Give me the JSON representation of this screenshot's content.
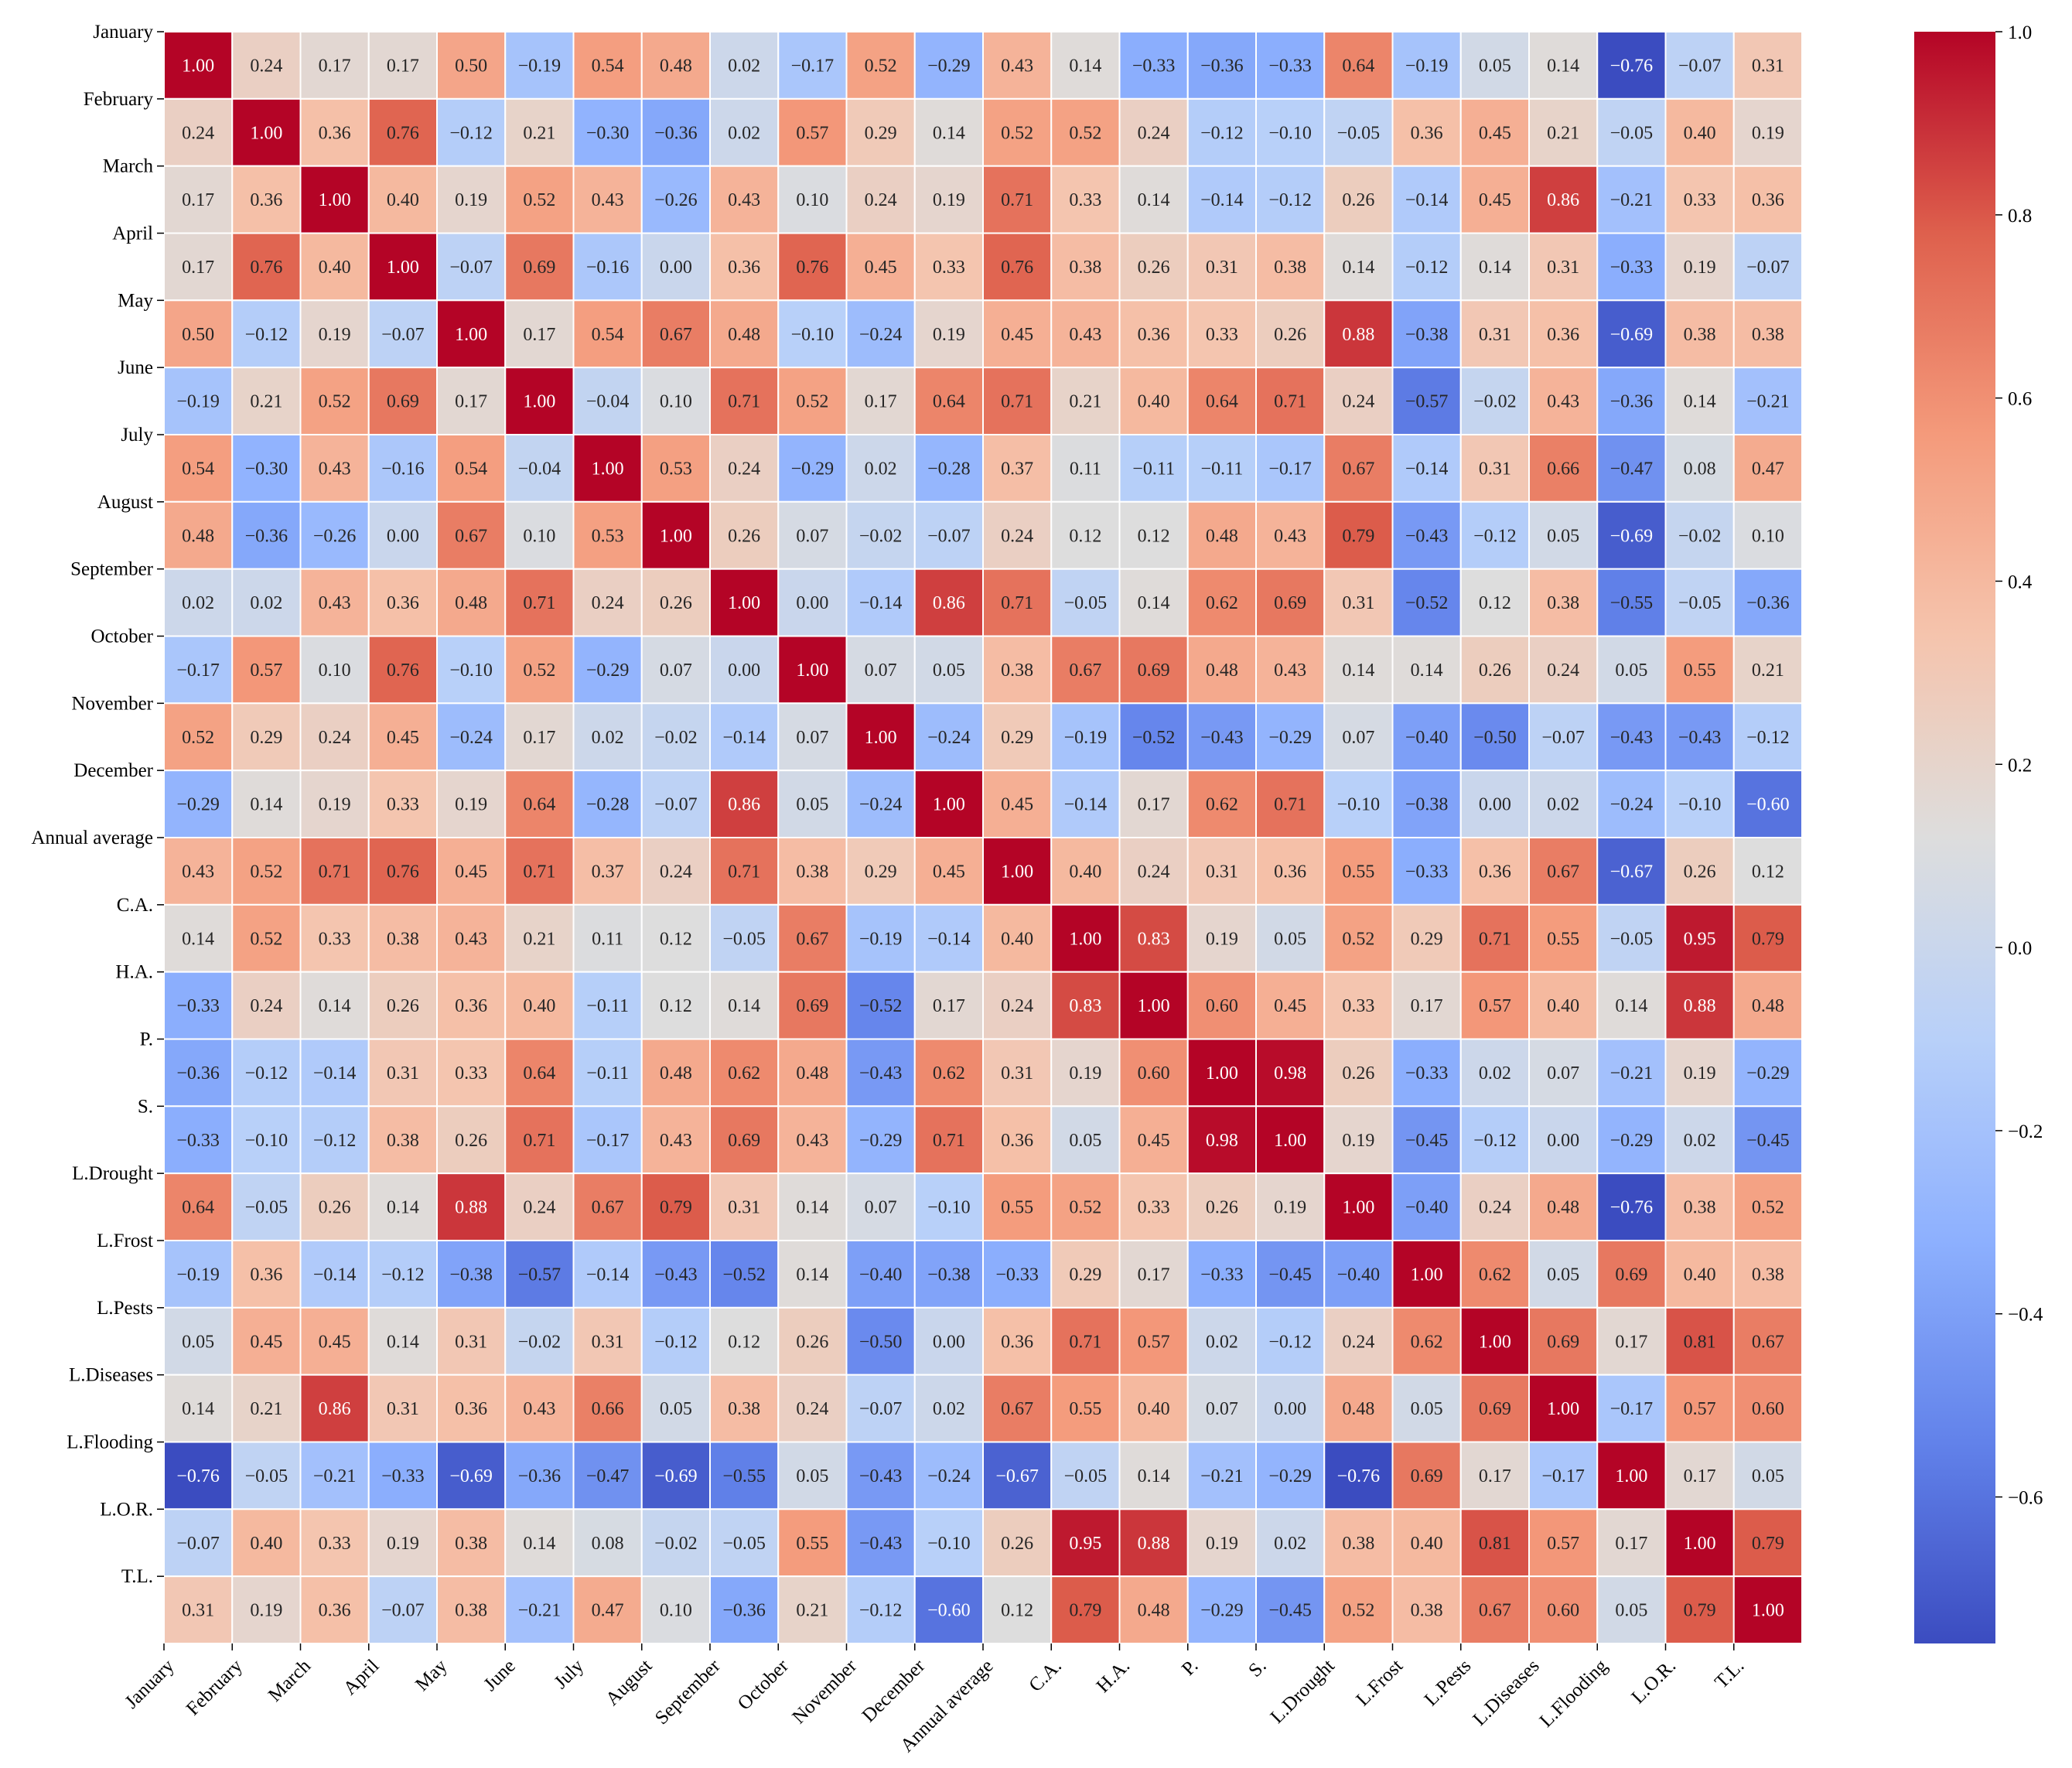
{
  "chart_data": {
    "type": "heatmap",
    "title": "",
    "xlabel": "",
    "ylabel": "",
    "colormap": "coolwarm",
    "value_range": [
      -0.76,
      1.0
    ],
    "labels": [
      "January",
      "February",
      "March",
      "April",
      "May",
      "June",
      "July",
      "August",
      "September",
      "October",
      "November",
      "December",
      "Annual average",
      "C.A.",
      "H.A.",
      "P.",
      "S.",
      "L.Drought",
      "L.Frost",
      "L.Pests",
      "L.Diseases",
      "L.Flooding",
      "L.O.R.",
      "T.L."
    ],
    "cell_labels": [
      [
        "1.00",
        "0.24",
        "0.17",
        "0.17",
        "0.50",
        "−0.19",
        "0.54",
        "0.48",
        "0.02",
        "−0.17",
        "0.52",
        "−0.29",
        "0.43",
        "0.14",
        "−0.33",
        "−0.36",
        "−0.33",
        "0.64",
        "−0.19",
        "0.05",
        "0.14",
        "−0.76",
        "−0.07",
        "0.31"
      ],
      [
        "0.24",
        "1.00",
        "0.36",
        "0.76",
        "−0.12",
        "0.21",
        "−0.30",
        "−0.36",
        "0.02",
        "0.57",
        "0.29",
        "0.14",
        "0.52",
        "0.52",
        "0.24",
        "−0.12",
        "−0.10",
        "−0.05",
        "0.36",
        "0.45",
        "0.21",
        "−0.05",
        "0.40",
        "0.19"
      ],
      [
        "0.17",
        "0.36",
        "1.00",
        "0.40",
        "0.19",
        "0.52",
        "0.43",
        "−0.26",
        "0.43",
        "0.10",
        "0.24",
        "0.19",
        "0.71",
        "0.33",
        "0.14",
        "−0.14",
        "−0.12",
        "0.26",
        "−0.14",
        "0.45",
        "0.86",
        "−0.21",
        "0.33",
        "0.36"
      ],
      [
        "0.17",
        "0.76",
        "0.40",
        "1.00",
        "−0.07",
        "0.69",
        "−0.16",
        "0.00",
        "0.36",
        "0.76",
        "0.45",
        "0.33",
        "0.76",
        "0.38",
        "0.26",
        "0.31",
        "0.38",
        "0.14",
        "−0.12",
        "0.14",
        "0.31",
        "−0.33",
        "0.19",
        "−0.07"
      ],
      [
        "0.50",
        "−0.12",
        "0.19",
        "−0.07",
        "1.00",
        "0.17",
        "0.54",
        "0.67",
        "0.48",
        "−0.10",
        "−0.24",
        "0.19",
        "0.45",
        "0.43",
        "0.36",
        "0.33",
        "0.26",
        "0.88",
        "−0.38",
        "0.31",
        "0.36",
        "−0.69",
        "0.38",
        "0.38"
      ],
      [
        "−0.19",
        "0.21",
        "0.52",
        "0.69",
        "0.17",
        "1.00",
        "−0.04",
        "0.10",
        "0.71",
        "0.52",
        "0.17",
        "0.64",
        "0.71",
        "0.21",
        "0.40",
        "0.64",
        "0.71",
        "0.24",
        "−0.57",
        "−0.02",
        "0.43",
        "−0.36",
        "0.14",
        "−0.21"
      ],
      [
        "0.54",
        "−0.30",
        "0.43",
        "−0.16",
        "0.54",
        "−0.04",
        "1.00",
        "0.53",
        "0.24",
        "−0.29",
        "0.02",
        "−0.28",
        "0.37",
        "0.11",
        "−0.11",
        "−0.11",
        "−0.17",
        "0.67",
        "−0.14",
        "0.31",
        "0.66",
        "−0.47",
        "0.08",
        "0.47"
      ],
      [
        "0.48",
        "−0.36",
        "−0.26",
        "0.00",
        "0.67",
        "0.10",
        "0.53",
        "1.00",
        "0.26",
        "0.07",
        "−0.02",
        "−0.07",
        "0.24",
        "0.12",
        "0.12",
        "0.48",
        "0.43",
        "0.79",
        "−0.43",
        "−0.12",
        "0.05",
        "−0.69",
        "−0.02",
        "0.10"
      ],
      [
        "0.02",
        "0.02",
        "0.43",
        "0.36",
        "0.48",
        "0.71",
        "0.24",
        "0.26",
        "1.00",
        "0.00",
        "−0.14",
        "0.86",
        "0.71",
        "−0.05",
        "0.14",
        "0.62",
        "0.69",
        "0.31",
        "−0.52",
        "0.12",
        "0.38",
        "−0.55",
        "−0.05",
        "−0.36"
      ],
      [
        "−0.17",
        "0.57",
        "0.10",
        "0.76",
        "−0.10",
        "0.52",
        "−0.29",
        "0.07",
        "0.00",
        "1.00",
        "0.07",
        "0.05",
        "0.38",
        "0.67",
        "0.69",
        "0.48",
        "0.43",
        "0.14",
        "0.14",
        "0.26",
        "0.24",
        "0.05",
        "0.55",
        "0.21"
      ],
      [
        "0.52",
        "0.29",
        "0.24",
        "0.45",
        "−0.24",
        "0.17",
        "0.02",
        "−0.02",
        "−0.14",
        "0.07",
        "1.00",
        "−0.24",
        "0.29",
        "−0.19",
        "−0.52",
        "−0.43",
        "−0.29",
        "0.07",
        "−0.40",
        "−0.50",
        "−0.07",
        "−0.43",
        "−0.43",
        "−0.12"
      ],
      [
        "−0.29",
        "0.14",
        "0.19",
        "0.33",
        "0.19",
        "0.64",
        "−0.28",
        "−0.07",
        "0.86",
        "0.05",
        "−0.24",
        "1.00",
        "0.45",
        "−0.14",
        "0.17",
        "0.62",
        "0.71",
        "−0.10",
        "−0.38",
        "0.00",
        "0.02",
        "−0.24",
        "−0.10",
        "−0.60"
      ],
      [
        "0.43",
        "0.52",
        "0.71",
        "0.76",
        "0.45",
        "0.71",
        "0.37",
        "0.24",
        "0.71",
        "0.38",
        "0.29",
        "0.45",
        "1.00",
        "0.40",
        "0.24",
        "0.31",
        "0.36",
        "0.55",
        "−0.33",
        "0.36",
        "0.67",
        "−0.67",
        "0.26",
        "0.12"
      ],
      [
        "0.14",
        "0.52",
        "0.33",
        "0.38",
        "0.43",
        "0.21",
        "0.11",
        "0.12",
        "−0.05",
        "0.67",
        "−0.19",
        "−0.14",
        "0.40",
        "1.00",
        "0.83",
        "0.19",
        "0.05",
        "0.52",
        "0.29",
        "0.71",
        "0.55",
        "−0.05",
        "0.95",
        "0.79"
      ],
      [
        "−0.33",
        "0.24",
        "0.14",
        "0.26",
        "0.36",
        "0.40",
        "−0.11",
        "0.12",
        "0.14",
        "0.69",
        "−0.52",
        "0.17",
        "0.24",
        "0.83",
        "1.00",
        "0.60",
        "0.45",
        "0.33",
        "0.17",
        "0.57",
        "0.40",
        "0.14",
        "0.88",
        "0.48"
      ],
      [
        "−0.36",
        "−0.12",
        "−0.14",
        "0.31",
        "0.33",
        "0.64",
        "−0.11",
        "0.48",
        "0.62",
        "0.48",
        "−0.43",
        "0.62",
        "0.31",
        "0.19",
        "0.60",
        "1.00",
        "0.98",
        "0.26",
        "−0.33",
        "0.02",
        "0.07",
        "−0.21",
        "0.19",
        "−0.29"
      ],
      [
        "−0.33",
        "−0.10",
        "−0.12",
        "0.38",
        "0.26",
        "0.71",
        "−0.17",
        "0.43",
        "0.69",
        "0.43",
        "−0.29",
        "0.71",
        "0.36",
        "0.05",
        "0.45",
        "0.98",
        "1.00",
        "0.19",
        "−0.45",
        "−0.12",
        "0.00",
        "−0.29",
        "0.02",
        "−0.45"
      ],
      [
        "0.64",
        "−0.05",
        "0.26",
        "0.14",
        "0.88",
        "0.24",
        "0.67",
        "0.79",
        "0.31",
        "0.14",
        "0.07",
        "−0.10",
        "0.55",
        "0.52",
        "0.33",
        "0.26",
        "0.19",
        "1.00",
        "−0.40",
        "0.24",
        "0.48",
        "−0.76",
        "0.38",
        "0.52"
      ],
      [
        "−0.19",
        "0.36",
        "−0.14",
        "−0.12",
        "−0.38",
        "−0.57",
        "−0.14",
        "−0.43",
        "−0.52",
        "0.14",
        "−0.40",
        "−0.38",
        "−0.33",
        "0.29",
        "0.17",
        "−0.33",
        "−0.45",
        "−0.40",
        "1.00",
        "0.62",
        "0.05",
        "0.69",
        "0.40",
        "0.38"
      ],
      [
        "0.05",
        "0.45",
        "0.45",
        "0.14",
        "0.31",
        "−0.02",
        "0.31",
        "−0.12",
        "0.12",
        "0.26",
        "−0.50",
        "0.00",
        "0.36",
        "0.71",
        "0.57",
        "0.02",
        "−0.12",
        "0.24",
        "0.62",
        "1.00",
        "0.69",
        "0.17",
        "0.81",
        "0.67"
      ],
      [
        "0.14",
        "0.21",
        "0.86",
        "0.31",
        "0.36",
        "0.43",
        "0.66",
        "0.05",
        "0.38",
        "0.24",
        "−0.07",
        "0.02",
        "0.67",
        "0.55",
        "0.40",
        "0.07",
        "0.00",
        "0.48",
        "0.05",
        "0.69",
        "1.00",
        "−0.17",
        "0.57",
        "0.60"
      ],
      [
        "−0.76",
        "−0.05",
        "−0.21",
        "−0.33",
        "−0.69",
        "−0.36",
        "−0.47",
        "−0.69",
        "−0.55",
        "0.05",
        "−0.43",
        "−0.24",
        "−0.67",
        "−0.05",
        "0.14",
        "−0.21",
        "−0.29",
        "−0.76",
        "0.69",
        "0.17",
        "−0.17",
        "1.00",
        "0.17",
        "0.05"
      ],
      [
        "−0.07",
        "0.40",
        "0.33",
        "0.19",
        "0.38",
        "0.14",
        "0.08",
        "−0.02",
        "−0.05",
        "0.55",
        "−0.43",
        "−0.10",
        "0.26",
        "0.95",
        "0.88",
        "0.19",
        "0.02",
        "0.38",
        "0.40",
        "0.81",
        "0.57",
        "0.17",
        "1.00",
        "0.79"
      ],
      [
        "0.31",
        "0.19",
        "0.36",
        "−0.07",
        "0.38",
        "−0.21",
        "0.47",
        "0.10",
        "−0.36",
        "0.21",
        "−0.12",
        "−0.60",
        "0.12",
        "0.79",
        "0.48",
        "−0.29",
        "−0.45",
        "0.52",
        "0.38",
        "0.67",
        "0.60",
        "0.05",
        "0.79",
        "1.00"
      ]
    ],
    "colorbar": {
      "range": [
        -0.76,
        1.0
      ],
      "ticks": [
        -0.6,
        -0.4,
        -0.2,
        0.0,
        0.2,
        0.4,
        0.6,
        0.8,
        1.0
      ],
      "tick_labels": [
        "−0.6",
        "−0.4",
        "−0.2",
        "0.0",
        "0.2",
        "0.4",
        "0.6",
        "0.8",
        "1.0"
      ]
    }
  }
}
